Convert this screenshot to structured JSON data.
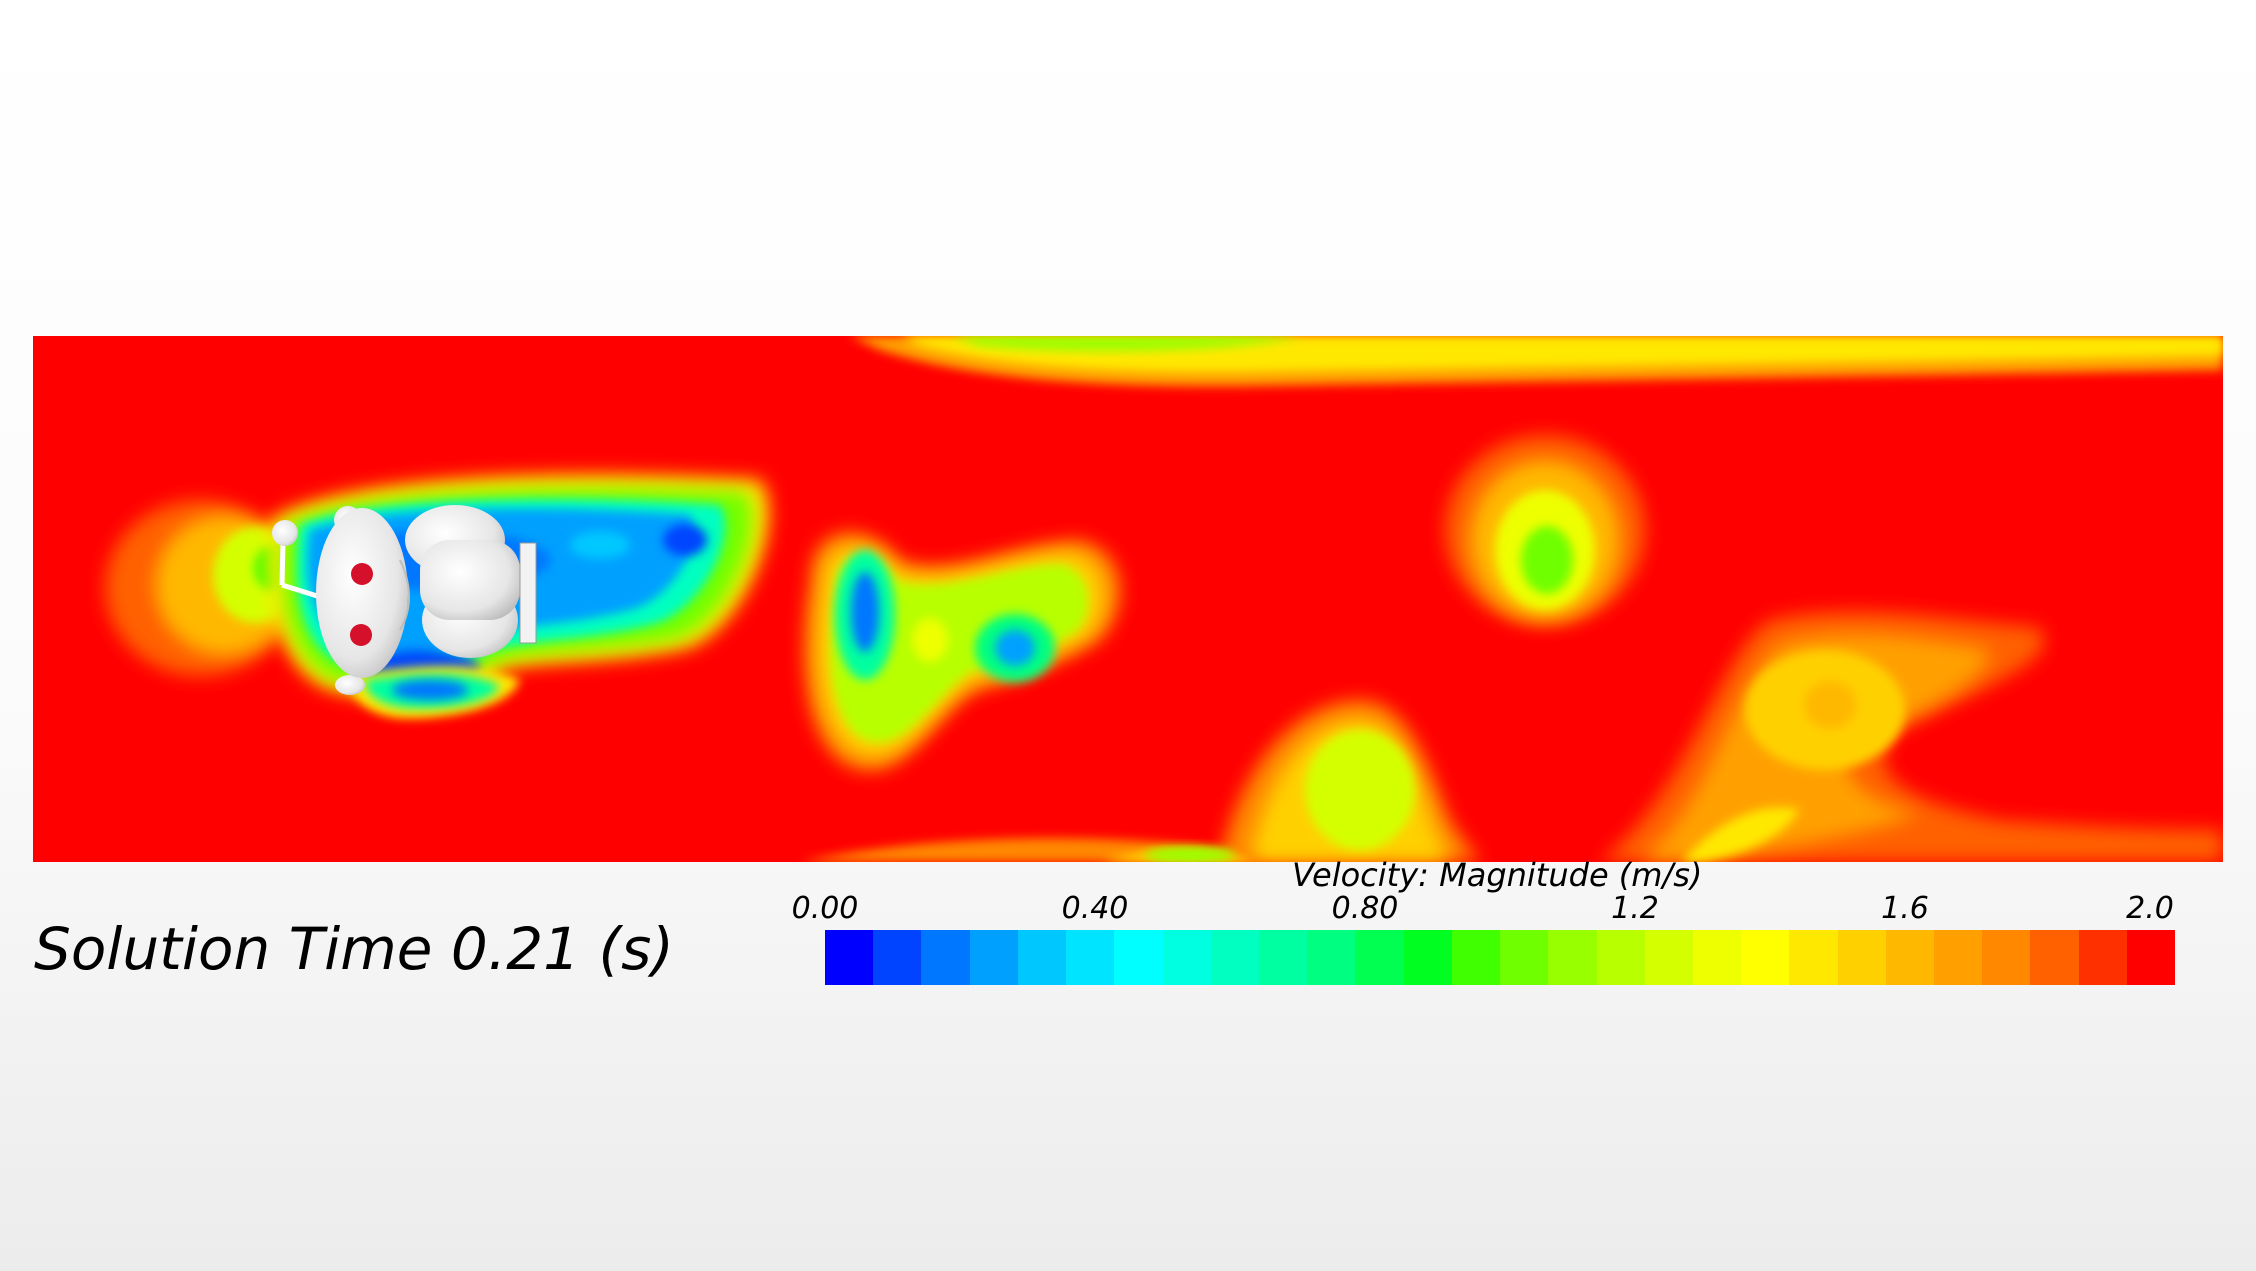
{
  "annotation": {
    "solution_time": "Solution Time 0.21 (s)"
  },
  "legend": {
    "title": "Velocity: Magnitude (m/s)",
    "ticks": [
      "0.00",
      "0.40",
      "0.80",
      "1.2",
      "1.6",
      "2.0"
    ],
    "tick_values": [
      0.0,
      0.4,
      0.8,
      1.2,
      1.6,
      2.0
    ],
    "range": [
      0.0,
      2.0
    ],
    "colormap": [
      "#0000ff",
      "#0044ff",
      "#0077ff",
      "#00a0ff",
      "#00c8ff",
      "#00e4ff",
      "#00ffff",
      "#00ffe0",
      "#00ffc0",
      "#00ffa0",
      "#00ff80",
      "#00ff50",
      "#00ff20",
      "#40ff00",
      "#70ff00",
      "#98ff00",
      "#b8ff00",
      "#d4ff00",
      "#eeff00",
      "#ffff00",
      "#ffe800",
      "#ffd000",
      "#ffb800",
      "#ffa000",
      "#ff8800",
      "#ff6000",
      "#ff3000",
      "#ff0000"
    ]
  },
  "colors": {
    "free_stream": "#ff0000",
    "body": "#ffffff",
    "body_markers": "#d4102a"
  }
}
